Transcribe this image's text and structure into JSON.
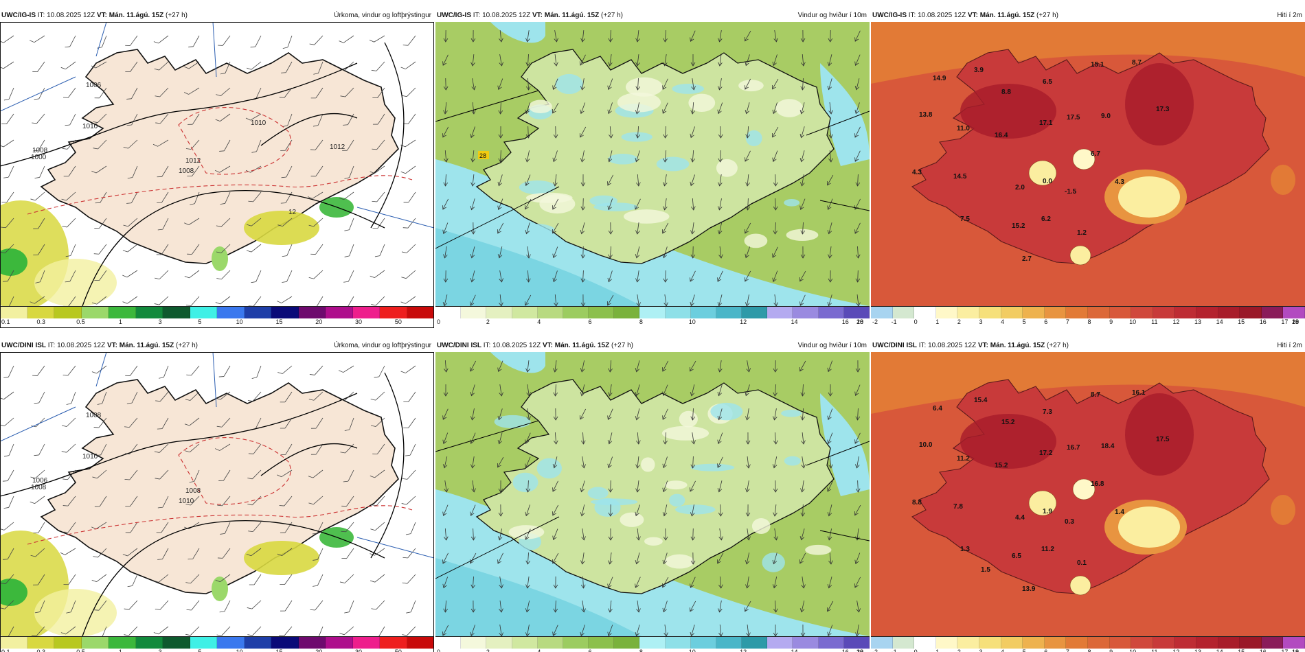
{
  "rows": [
    {
      "model": "UWC/IG-IS",
      "it_label": "IT:",
      "it_value": "10.08.2025 12Z",
      "vt_label": "VT:",
      "vt_value": "Mán. 11.ágú. 15Z",
      "lead": "(+27 h)",
      "precip_labels": [
        "1006",
        "1008",
        "1010",
        "1012",
        "1000",
        "1008",
        "1010",
        "1012",
        "12"
      ],
      "temp_labels": [
        "14.9",
        "3.9",
        "15.1",
        "8.7",
        "6.5",
        "8.8",
        "13.8",
        "11.0",
        "17.1",
        "17.5",
        "9.0",
        "17.3",
        "16.4",
        "6.7",
        "4.3",
        "14.5",
        "2.0",
        "0.0",
        "-1.5",
        "4.3",
        "7.5",
        "15.2",
        "6.2",
        "1.2",
        "2.7"
      ],
      "wind_labels": [
        "28"
      ]
    },
    {
      "model": "UWC/DINI ISL",
      "it_label": "IT:",
      "it_value": "10.08.2025 12Z",
      "vt_label": "VT:",
      "vt_value": "Mán. 11.ágú. 15Z",
      "lead": "(+27 h)",
      "precip_labels": [
        "1008",
        "1006",
        "1010",
        "1008",
        "1008",
        "1010"
      ],
      "temp_labels": [
        "6.4",
        "15.4",
        "8.7",
        "16.1",
        "7.3",
        "15.2",
        "10.0",
        "11.2",
        "17.2",
        "16.7",
        "18.4",
        "17.5",
        "15.2",
        "16.8",
        "8.8",
        "7.8",
        "4.4",
        "1.9",
        "0.3",
        "1.4",
        "1.3",
        "6.5",
        "11.2",
        "0.1",
        "13.9",
        "1.5"
      ],
      "wind_labels": []
    }
  ],
  "panels": {
    "precip": {
      "title": "Úrkoma, vindur og loftþrýstingur",
      "legend_colors": [
        "#f2f0a0",
        "#d8d840",
        "#b8c820",
        "#9bd86a",
        "#3cb83c",
        "#128a3c",
        "#0e5a2e",
        "#3ff0e6",
        "#3a78ee",
        "#1e3ea8",
        "#0a0a78",
        "#6e0a6e",
        "#ae0e8c",
        "#ee1e8c",
        "#ee1e1e",
        "#c80a0a"
      ],
      "legend_labels": [
        "0.1",
        "0.3",
        "0.5",
        "1",
        "3",
        "5",
        "10",
        "15",
        "20",
        "30",
        "50"
      ]
    },
    "wind": {
      "title": "Vindur og hviður í 10m",
      "legend_colors": [
        "#ffffff",
        "#f4f8dc",
        "#e4f0c0",
        "#d0e8a0",
        "#b8da80",
        "#9ccc60",
        "#8cc04c",
        "#7ab23c",
        "#aef0f4",
        "#8ee0e8",
        "#6ccede",
        "#4ab6c8",
        "#2e9aa8",
        "#b4aaf0",
        "#9a8ae0",
        "#7a6ad0",
        "#5a4ab8"
      ],
      "legend_labels": [
        "0",
        "2",
        "4",
        "6",
        "8",
        "10",
        "12",
        "14",
        "16",
        "18",
        "20"
      ]
    },
    "temp": {
      "title": "Hiti í 2m",
      "legend_colors": [
        "#a8d4f0",
        "#d4e8d0",
        "#ffffff",
        "#fff8c8",
        "#fbeea0",
        "#f6e07a",
        "#f2cc62",
        "#eeb24e",
        "#e89440",
        "#e27a36",
        "#dc6838",
        "#d8583a",
        "#d0483c",
        "#c83a3a",
        "#be2c34",
        "#b4222e",
        "#a81c2a",
        "#9a1828",
        "#8a1c5a",
        "#b24ac0"
      ],
      "legend_labels": [
        "-2",
        "-1",
        "0",
        "1",
        "2",
        "3",
        "4",
        "5",
        "6",
        "7",
        "8",
        "9",
        "10",
        "11",
        "12",
        "13",
        "14",
        "15",
        "16",
        "17",
        "18",
        "19",
        "20"
      ],
      "legend_labels_bottom": [
        "-2",
        "-1",
        "0",
        "1",
        "2",
        "3",
        "4",
        "5",
        "6",
        "7",
        "8",
        "9",
        "10",
        "11",
        "12",
        "13",
        "14",
        "15",
        "16",
        "17",
        "18",
        "19"
      ]
    }
  },
  "colors": {
    "land_precip": "#f7e6d6",
    "sea_precip": "#ffffff",
    "wind_land": "#a8cc64",
    "wind_sea": "#9ee4ec",
    "temp_base": "#d8583a",
    "temp_sea": "#e27a36"
  }
}
